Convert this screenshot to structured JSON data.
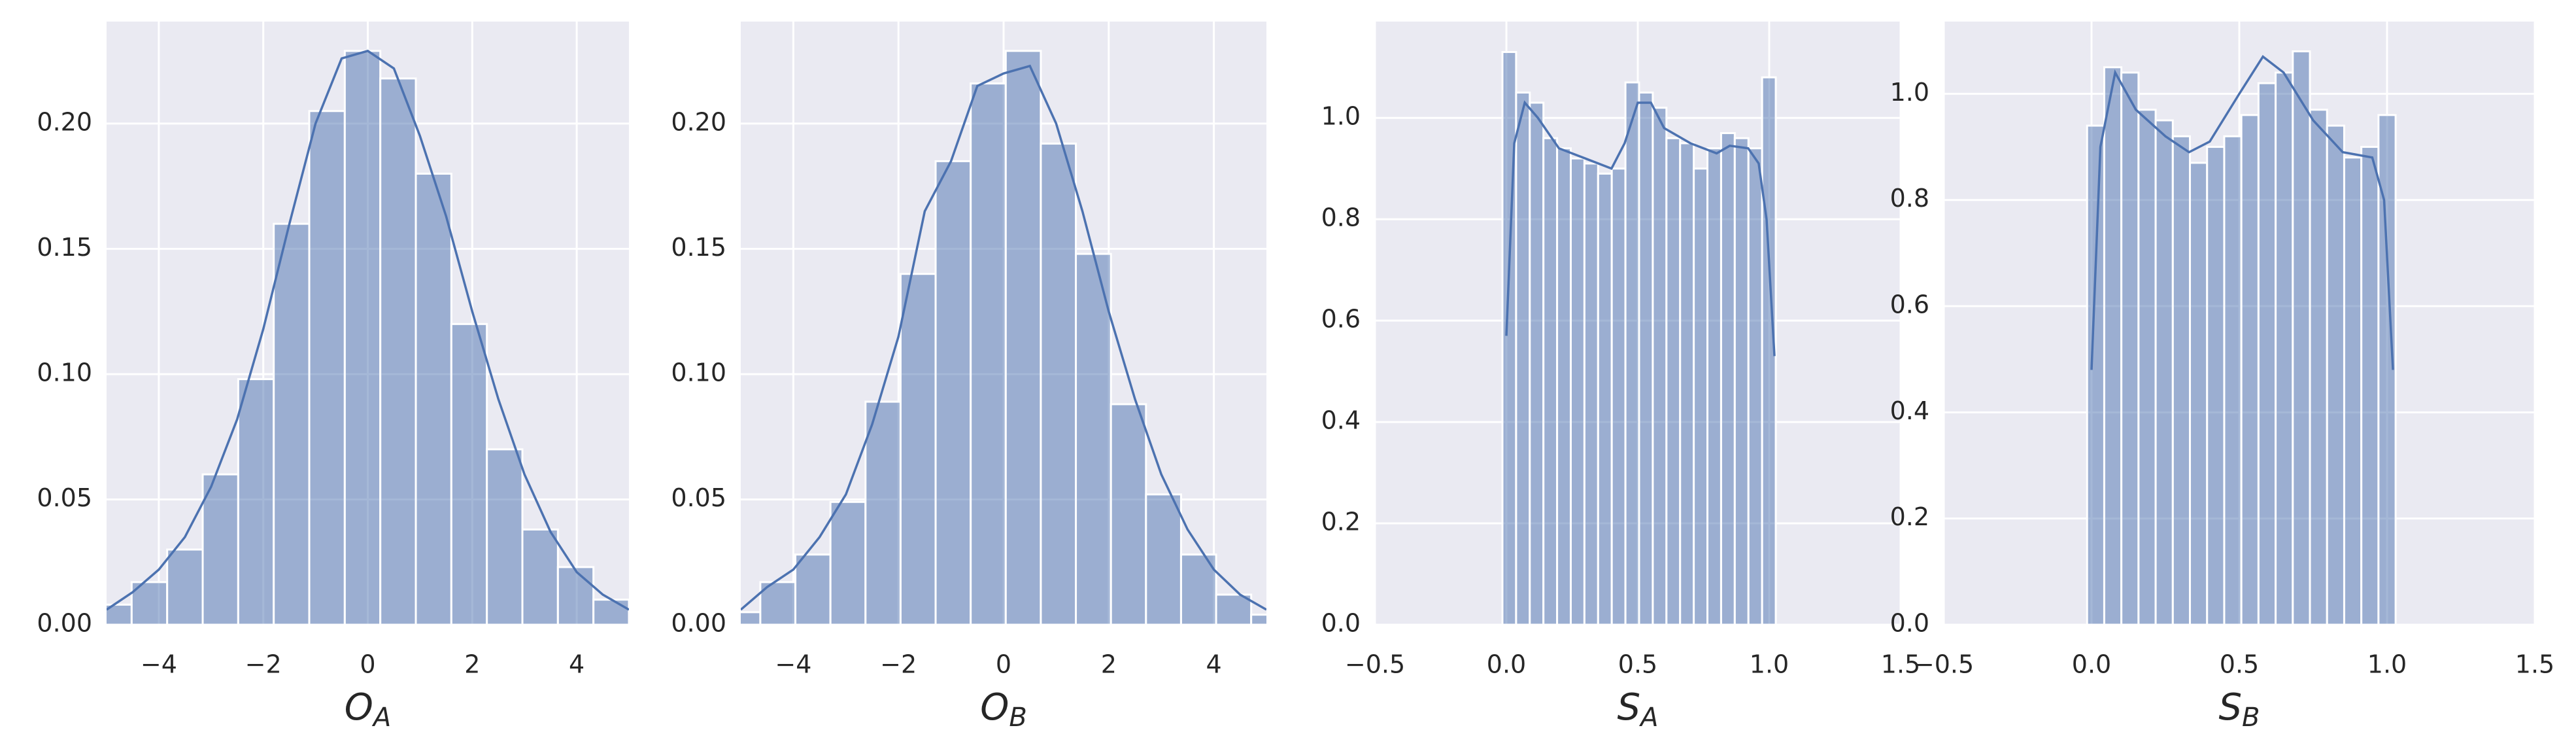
{
  "chart_data": [
    {
      "type": "histogram",
      "xlabel": "O",
      "xlabel_sub": "A",
      "color": "#4c72b0",
      "grid": true,
      "bins": [
        -5.2,
        -4.52,
        -3.84,
        -3.16,
        -2.48,
        -1.8,
        -1.12,
        -0.44,
        0.24,
        0.92,
        1.6,
        2.28,
        2.96,
        3.64,
        4.32,
        5.0
      ],
      "counts": [
        0.008,
        0.017,
        0.03,
        0.06,
        0.098,
        0.16,
        0.205,
        0.229,
        0.218,
        0.18,
        0.12,
        0.07,
        0.038,
        0.023,
        0.01
      ],
      "kde": {
        "x": [
          -5,
          -4.5,
          -4,
          -3.5,
          -3,
          -2.5,
          -2,
          -1.5,
          -1,
          -0.5,
          0,
          0.5,
          1,
          1.5,
          2,
          2.5,
          3,
          3.5,
          4,
          4.5,
          5
        ],
        "values": [
          0.006,
          0.013,
          0.022,
          0.035,
          0.055,
          0.082,
          0.118,
          0.16,
          0.2,
          0.226,
          0.229,
          0.222,
          0.195,
          0.163,
          0.125,
          0.09,
          0.06,
          0.037,
          0.021,
          0.012,
          0.006
        ]
      },
      "xlim": [
        -5,
        5
      ],
      "ylim": [
        0,
        0.2407
      ],
      "xticks": [
        {
          "value": -4,
          "label": "−4"
        },
        {
          "value": -2,
          "label": "−2"
        },
        0,
        2,
        4
      ],
      "yticks": [
        {
          "value": 0,
          "label": "0.00"
        },
        {
          "value": 0.05,
          "label": "0.05"
        },
        {
          "value": 0.1,
          "label": "0.10"
        },
        {
          "value": 0.15,
          "label": "0.15"
        },
        {
          "value": 0.2,
          "label": "0.20"
        }
      ]
    },
    {
      "type": "histogram",
      "xlabel": "O",
      "xlabel_sub": "B",
      "color": "#4c72b0",
      "grid": true,
      "bins": [
        -5.295,
        -4.628,
        -3.961,
        -3.294,
        -2.627,
        -1.96,
        -1.293,
        -0.626,
        0.041,
        0.708,
        1.375,
        2.042,
        2.709,
        3.376,
        4.043,
        4.71,
        5.377
      ],
      "counts": [
        0.005,
        0.017,
        0.028,
        0.049,
        0.089,
        0.14,
        0.185,
        0.216,
        0.229,
        0.192,
        0.148,
        0.088,
        0.052,
        0.028,
        0.012,
        0.004
      ],
      "kde": {
        "x": [
          -5,
          -4.5,
          -4,
          -3.5,
          -3,
          -2.5,
          -2,
          -1.5,
          -1,
          -0.5,
          0,
          0.5,
          1,
          1.5,
          2,
          2.5,
          3,
          3.5,
          4,
          4.5,
          5
        ],
        "values": [
          0.006,
          0.015,
          0.022,
          0.035,
          0.052,
          0.08,
          0.115,
          0.165,
          0.185,
          0.215,
          0.22,
          0.223,
          0.2,
          0.165,
          0.125,
          0.09,
          0.06,
          0.038,
          0.022,
          0.012,
          0.006
        ]
      },
      "xlim": [
        -5,
        5
      ],
      "ylim": [
        0,
        0.2407
      ],
      "xticks": [
        {
          "value": -4,
          "label": "−4"
        },
        {
          "value": -2,
          "label": "−2"
        },
        0,
        2,
        4
      ],
      "yticks": [
        {
          "value": 0,
          "label": "0.00"
        },
        {
          "value": 0.05,
          "label": "0.05"
        },
        {
          "value": 0.1,
          "label": "0.10"
        },
        {
          "value": 0.15,
          "label": "0.15"
        },
        {
          "value": 0.2,
          "label": "0.20"
        }
      ]
    },
    {
      "type": "histogram",
      "xlabel": "S",
      "xlabel_sub": "A",
      "color": "#4c72b0",
      "grid": true,
      "bins": [
        -0.015,
        0.037,
        0.089,
        0.141,
        0.193,
        0.245,
        0.297,
        0.349,
        0.401,
        0.453,
        0.505,
        0.557,
        0.609,
        0.661,
        0.713,
        0.765,
        0.817,
        0.869,
        0.921,
        0.973,
        1.025
      ],
      "counts": [
        1.13,
        1.05,
        1.03,
        0.96,
        0.94,
        0.92,
        0.91,
        0.89,
        0.9,
        1.07,
        1.05,
        1.02,
        0.96,
        0.95,
        0.9,
        0.94,
        0.97,
        0.96,
        0.94,
        1.08
      ],
      "kde": {
        "x": [
          0,
          0.03,
          0.07,
          0.12,
          0.2,
          0.3,
          0.4,
          0.45,
          0.5,
          0.55,
          0.6,
          0.7,
          0.8,
          0.85,
          0.92,
          0.96,
          0.99,
          1.02
        ],
        "values": [
          0.57,
          0.95,
          1.03,
          1.0,
          0.94,
          0.92,
          0.9,
          0.95,
          1.03,
          1.03,
          0.98,
          0.95,
          0.93,
          0.945,
          0.94,
          0.91,
          0.8,
          0.53
        ]
      },
      "xlim": [
        -0.5,
        1.5
      ],
      "ylim": [
        0,
        1.19
      ],
      "xticks": [
        {
          "value": -0.5,
          "label": "−0.5"
        },
        {
          "value": 0,
          "label": "0.0"
        },
        0.5,
        {
          "value": 1,
          "label": "1.0"
        },
        1.5
      ],
      "yticks": [
        {
          "value": 0,
          "label": "0.0"
        },
        0.2,
        0.4,
        0.6,
        0.8,
        {
          "value": 1,
          "label": "1.0"
        }
      ]
    },
    {
      "type": "histogram",
      "xlabel": "S",
      "xlabel_sub": "B",
      "color": "#4c72b0",
      "grid": true,
      "bins": [
        -0.015,
        0.043,
        0.101,
        0.159,
        0.217,
        0.275,
        0.333,
        0.391,
        0.449,
        0.507,
        0.565,
        0.623,
        0.681,
        0.739,
        0.797,
        0.855,
        0.913,
        0.971,
        1.029
      ],
      "counts": [
        0.94,
        1.05,
        1.04,
        0.97,
        0.95,
        0.92,
        0.87,
        0.9,
        0.92,
        0.96,
        1.02,
        1.04,
        1.08,
        0.97,
        0.94,
        0.88,
        0.9,
        0.96
      ],
      "kde": {
        "x": [
          0,
          0.03,
          0.08,
          0.15,
          0.25,
          0.33,
          0.4,
          0.5,
          0.58,
          0.65,
          0.75,
          0.85,
          0.95,
          0.99,
          1.02
        ],
        "values": [
          0.48,
          0.9,
          1.04,
          0.97,
          0.92,
          0.89,
          0.91,
          1.0,
          1.07,
          1.04,
          0.95,
          0.89,
          0.88,
          0.8,
          0.48
        ]
      },
      "xlim": [
        -0.5,
        1.5
      ],
      "ylim": [
        0,
        1.136
      ],
      "xticks": [
        {
          "value": -0.5,
          "label": "−0.5"
        },
        {
          "value": 0,
          "label": "0.0"
        },
        0.5,
        {
          "value": 1,
          "label": "1.0"
        },
        1.5
      ],
      "yticks": [
        {
          "value": 0,
          "label": "0.0"
        },
        0.2,
        0.4,
        0.6,
        0.8,
        {
          "value": 1,
          "label": "1.0"
        }
      ]
    }
  ]
}
